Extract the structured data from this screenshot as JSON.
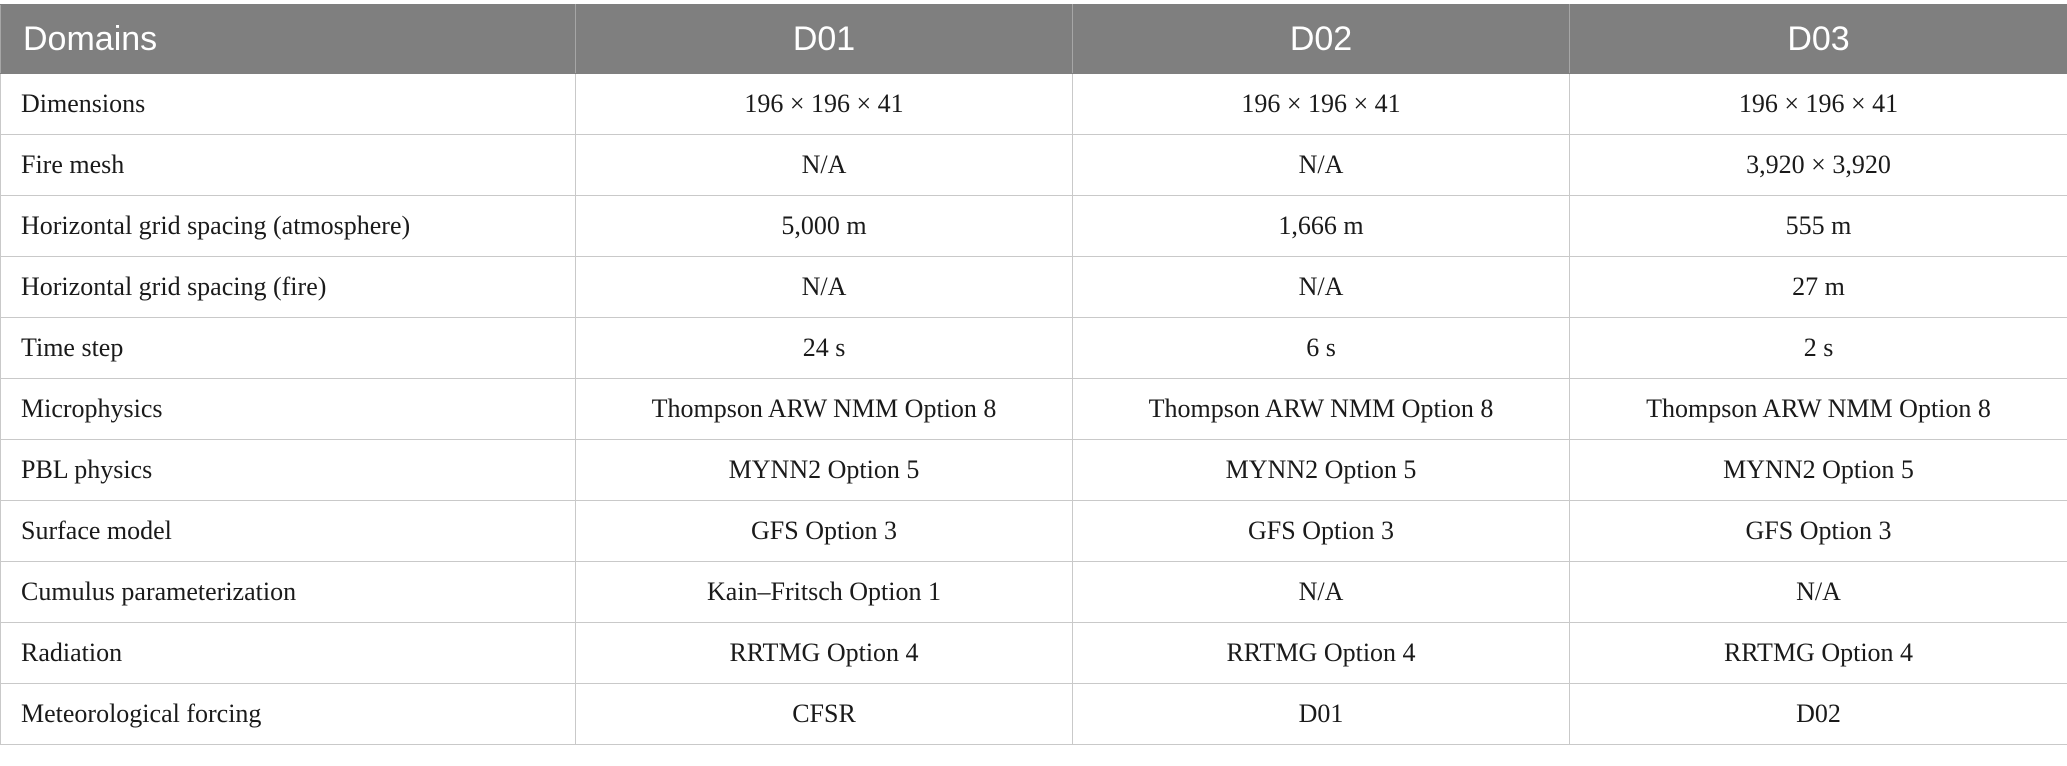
{
  "table": {
    "headers": [
      "Domains",
      "D01",
      "D02",
      "D03"
    ],
    "rows": [
      {
        "label": "Dimensions",
        "d01": "196 × 196 × 41",
        "d02": "196 × 196 × 41",
        "d03": "196 × 196 × 41"
      },
      {
        "label": "Fire mesh",
        "d01": "N/A",
        "d02": "N/A",
        "d03": "3,920 × 3,920"
      },
      {
        "label": "Horizontal grid spacing (atmosphere)",
        "d01": "5,000 m",
        "d02": "1,666 m",
        "d03": "555 m"
      },
      {
        "label": "Horizontal grid spacing (fire)",
        "d01": "N/A",
        "d02": "N/A",
        "d03": "27 m"
      },
      {
        "label": "Time step",
        "d01": "24 s",
        "d02": "6 s",
        "d03": "2 s"
      },
      {
        "label": "Microphysics",
        "d01": "Thompson ARW NMM Option 8",
        "d02": "Thompson ARW NMM Option 8",
        "d03": "Thompson ARW NMM Option 8"
      },
      {
        "label": "PBL physics",
        "d01": "MYNN2 Option 5",
        "d02": "MYNN2 Option 5",
        "d03": "MYNN2 Option 5"
      },
      {
        "label": "Surface model",
        "d01": "GFS Option 3",
        "d02": "GFS Option 3",
        "d03": "GFS Option 3"
      },
      {
        "label": "Cumulus parameterization",
        "d01": "Kain–Fritsch Option 1",
        "d02": "N/A",
        "d03": "N/A"
      },
      {
        "label": "Radiation",
        "d01": "RRTMG Option 4",
        "d02": "RRTMG Option 4",
        "d03": "RRTMG Option 4"
      },
      {
        "label": "Meteorological forcing",
        "d01": "CFSR",
        "d02": "D01",
        "d03": "D02"
      }
    ]
  }
}
